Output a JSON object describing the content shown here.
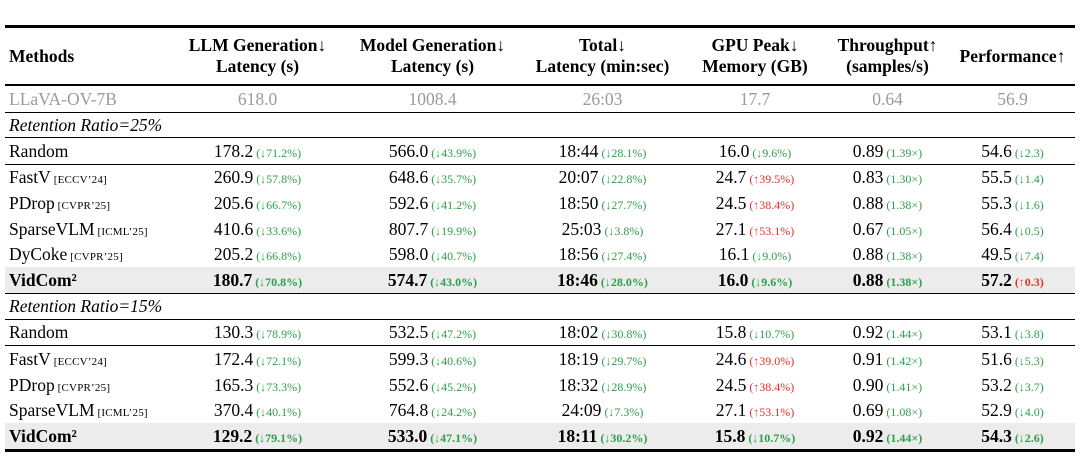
{
  "colors": {
    "green": "#2e9e4a",
    "red": "#e63329",
    "baseline_gray": "#9a9a9a",
    "highlight_bg": "#ececec"
  },
  "table": {
    "columns": [
      {
        "id": "methods",
        "line1": "Methods",
        "line2": ""
      },
      {
        "id": "llm-latency",
        "line1": "LLM Generation↓",
        "line2": "Latency (s)"
      },
      {
        "id": "model-latency",
        "line1": "Model Generation↓",
        "line2": "Latency (s)"
      },
      {
        "id": "total-latency",
        "line1": "Total↓",
        "line2": "Latency (min:sec)"
      },
      {
        "id": "gpu-memory",
        "line1": "GPU Peak↓",
        "line2": "Memory (GB)"
      },
      {
        "id": "throughput",
        "line1": "Throughput↑",
        "line2": "(samples/s)"
      },
      {
        "id": "performance",
        "line1": "Performance↑",
        "line2": ""
      }
    ],
    "rows": [
      {
        "id": "llava-ov-7b",
        "type": "baseline",
        "method": "LLaVA-OV-7B",
        "venue": "",
        "cells": [
          {
            "v": "618.0"
          },
          {
            "v": "1008.4"
          },
          {
            "v": "26:03"
          },
          {
            "v": "17.7"
          },
          {
            "v": "0.64"
          },
          {
            "v": "56.9"
          }
        ]
      },
      {
        "id": "section-25",
        "type": "section",
        "label": "Retention Ratio=25%"
      },
      {
        "id": "random-25",
        "type": "data",
        "rule_below": true,
        "method": "Random",
        "venue": "",
        "cells": [
          {
            "v": "178.2",
            "a": "(↓71.2%)",
            "c": "green"
          },
          {
            "v": "566.0",
            "a": "(↓43.9%)",
            "c": "green"
          },
          {
            "v": "18:44",
            "a": "(↓28.1%)",
            "c": "green"
          },
          {
            "v": "16.0",
            "a": "(↓9.6%)",
            "c": "green"
          },
          {
            "v": "0.89",
            "a": "(1.39×)",
            "c": "green"
          },
          {
            "v": "54.6",
            "a": "(↓2.3)",
            "c": "green"
          }
        ]
      },
      {
        "id": "fastv-25",
        "type": "data",
        "method": "FastV",
        "venue": "[ECCV’24]",
        "cells": [
          {
            "v": "260.9",
            "a": "(↓57.8%)",
            "c": "green"
          },
          {
            "v": "648.6",
            "a": "(↓35.7%)",
            "c": "green"
          },
          {
            "v": "20:07",
            "a": "(↓22.8%)",
            "c": "green"
          },
          {
            "v": "24.7",
            "a": "(↑39.5%)",
            "c": "red"
          },
          {
            "v": "0.83",
            "a": "(1.30×)",
            "c": "green"
          },
          {
            "v": "55.5",
            "a": "(↓1.4)",
            "c": "green"
          }
        ]
      },
      {
        "id": "pdrop-25",
        "type": "data",
        "method": "PDrop",
        "venue": "[CVPR’25]",
        "cells": [
          {
            "v": "205.6",
            "a": "(↓66.7%)",
            "c": "green"
          },
          {
            "v": "592.6",
            "a": "(↓41.2%)",
            "c": "green"
          },
          {
            "v": "18:50",
            "a": "(↓27.7%)",
            "c": "green"
          },
          {
            "v": "24.5",
            "a": "(↑38.4%)",
            "c": "red"
          },
          {
            "v": "0.88",
            "a": "(1.38×)",
            "c": "green"
          },
          {
            "v": "55.3",
            "a": "(↓1.6)",
            "c": "green"
          }
        ]
      },
      {
        "id": "sparsevlm-25",
        "type": "data",
        "method": "SparseVLM",
        "venue": "[ICML’25]",
        "cells": [
          {
            "v": "410.6",
            "a": "(↓33.6%)",
            "c": "green"
          },
          {
            "v": "807.7",
            "a": "(↓19.9%)",
            "c": "green"
          },
          {
            "v": "25:03",
            "a": "(↓3.8%)",
            "c": "green"
          },
          {
            "v": "27.1",
            "a": "(↑53.1%)",
            "c": "red"
          },
          {
            "v": "0.67",
            "a": "(1.05×)",
            "c": "green"
          },
          {
            "v": "56.4",
            "a": "(↓0.5)",
            "c": "green"
          }
        ]
      },
      {
        "id": "dycoke-25",
        "type": "data",
        "method": "DyCoke",
        "venue": "[CVPR’25]",
        "cells": [
          {
            "v": "205.2",
            "a": "(↓66.8%)",
            "c": "green"
          },
          {
            "v": "598.0",
            "a": "(↓40.7%)",
            "c": "green"
          },
          {
            "v": "18:56",
            "a": "(↓27.4%)",
            "c": "green"
          },
          {
            "v": "16.1",
            "a": "(↓9.0%)",
            "c": "green"
          },
          {
            "v": "0.88",
            "a": "(1.38×)",
            "c": "green"
          },
          {
            "v": "49.5",
            "a": "(↓7.4)",
            "c": "green"
          }
        ]
      },
      {
        "id": "vidcom-25",
        "type": "highlight",
        "method": "VidCom²",
        "venue": "",
        "cells": [
          {
            "v": "180.7",
            "a": "(↓70.8%)",
            "c": "green"
          },
          {
            "v": "574.7",
            "a": "(↓43.0%)",
            "c": "green"
          },
          {
            "v": "18:46",
            "a": "(↓28.0%)",
            "c": "green"
          },
          {
            "v": "16.0",
            "a": "(↓9.6%)",
            "c": "green"
          },
          {
            "v": "0.88",
            "a": "(1.38×)",
            "c": "green"
          },
          {
            "v": "57.2",
            "a": "(↑0.3)",
            "c": "red"
          }
        ]
      },
      {
        "id": "section-15",
        "type": "section",
        "label": "Retention Ratio=15%"
      },
      {
        "id": "random-15",
        "type": "data",
        "rule_below": true,
        "method": "Random",
        "venue": "",
        "cells": [
          {
            "v": "130.3",
            "a": "(↓78.9%)",
            "c": "green"
          },
          {
            "v": "532.5",
            "a": "(↓47.2%)",
            "c": "green"
          },
          {
            "v": "18:02",
            "a": "(↓30.8%)",
            "c": "green"
          },
          {
            "v": "15.8",
            "a": "(↓10.7%)",
            "c": "green"
          },
          {
            "v": "0.92",
            "a": "(1.44×)",
            "c": "green"
          },
          {
            "v": "53.1",
            "a": "(↓3.8)",
            "c": "green"
          }
        ]
      },
      {
        "id": "fastv-15",
        "type": "data",
        "method": "FastV",
        "venue": "[ECCV’24]",
        "cells": [
          {
            "v": "172.4",
            "a": "(↓72.1%)",
            "c": "green"
          },
          {
            "v": "599.3",
            "a": "(↓40.6%)",
            "c": "green"
          },
          {
            "v": "18:19",
            "a": "(↓29.7%)",
            "c": "green"
          },
          {
            "v": "24.6",
            "a": "(↑39.0%)",
            "c": "red"
          },
          {
            "v": "0.91",
            "a": "(1.42×)",
            "c": "green"
          },
          {
            "v": "51.6",
            "a": "(↓5.3)",
            "c": "green"
          }
        ]
      },
      {
        "id": "pdrop-15",
        "type": "data",
        "method": "PDrop",
        "venue": "[CVPR’25]",
        "cells": [
          {
            "v": "165.3",
            "a": "(↓73.3%)",
            "c": "green"
          },
          {
            "v": "552.6",
            "a": "(↓45.2%)",
            "c": "green"
          },
          {
            "v": "18:32",
            "a": "(↓28.9%)",
            "c": "green"
          },
          {
            "v": "24.5",
            "a": "(↑38.4%)",
            "c": "red"
          },
          {
            "v": "0.90",
            "a": "(1.41×)",
            "c": "green"
          },
          {
            "v": "53.2",
            "a": "(↓3.7)",
            "c": "green"
          }
        ]
      },
      {
        "id": "sparsevlm-15",
        "type": "data",
        "method": "SparseVLM",
        "venue": "[ICML’25]",
        "cells": [
          {
            "v": "370.4",
            "a": "(↓40.1%)",
            "c": "green"
          },
          {
            "v": "764.8",
            "a": "(↓24.2%)",
            "c": "green"
          },
          {
            "v": "24:09",
            "a": "(↓7.3%)",
            "c": "green"
          },
          {
            "v": "27.1",
            "a": "(↑53.1%)",
            "c": "red"
          },
          {
            "v": "0.69",
            "a": "(1.08×)",
            "c": "green"
          },
          {
            "v": "52.9",
            "a": "(↓4.0)",
            "c": "green"
          }
        ]
      },
      {
        "id": "vidcom-15",
        "type": "highlight",
        "method": "VidCom²",
        "venue": "",
        "cells": [
          {
            "v": "129.2",
            "a": "(↓79.1%)",
            "c": "green"
          },
          {
            "v": "533.0",
            "a": "(↓47.1%)",
            "c": "green"
          },
          {
            "v": "18:11",
            "a": "(↓30.2%)",
            "c": "green"
          },
          {
            "v": "15.8",
            "a": "(↓10.7%)",
            "c": "green"
          },
          {
            "v": "0.92",
            "a": "(1.44×)",
            "c": "green"
          },
          {
            "v": "54.3",
            "a": "(↓2.6)",
            "c": "green"
          }
        ]
      }
    ]
  }
}
